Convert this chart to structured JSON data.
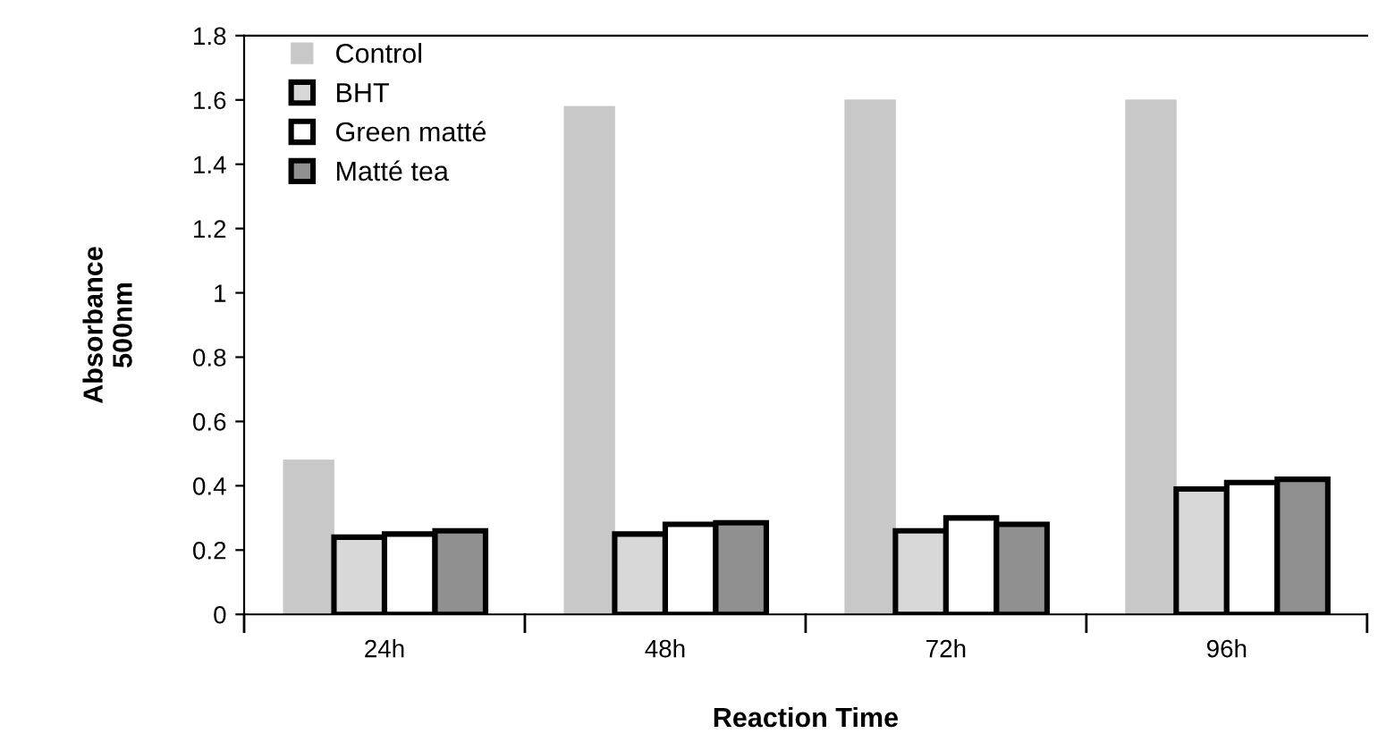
{
  "chart_data": {
    "type": "bar",
    "xlabel": "Reaction Time",
    "ylabel": "Absorbance\n500nm",
    "categories": [
      "24h",
      "48h",
      "72h",
      "96h"
    ],
    "series": [
      {
        "name": "Control",
        "color": "#c8c8c8",
        "values": [
          0.48,
          1.58,
          1.6,
          1.6
        ]
      },
      {
        "name": "BHT",
        "color": "#d8d8d8",
        "values": [
          0.24,
          0.25,
          0.26,
          0.39
        ]
      },
      {
        "name": "Green matté",
        "color": "#ffffff",
        "values": [
          0.25,
          0.28,
          0.3,
          0.41
        ]
      },
      {
        "name": "Matté tea",
        "color": "#909090",
        "values": [
          0.26,
          0.285,
          0.28,
          0.42
        ]
      }
    ],
    "ylim": [
      0,
      1.8
    ],
    "yticks": [
      0,
      0.2,
      0.4,
      0.6,
      0.8,
      1,
      1.2,
      1.4,
      1.6,
      1.8
    ],
    "grid": false,
    "legend": "top left"
  }
}
